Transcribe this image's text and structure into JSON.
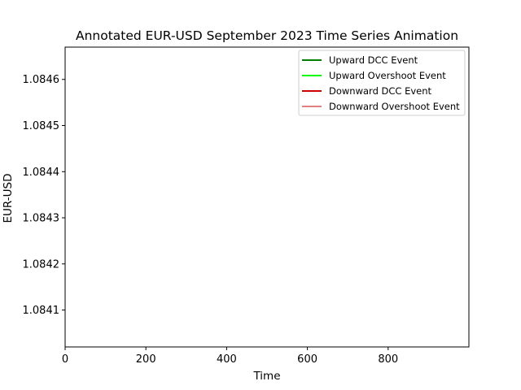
{
  "chart_data": {
    "type": "line",
    "title": "Annotated EUR-USD September 2023 Time Series Animation",
    "xlabel": "Time",
    "ylabel": "EUR-USD",
    "xlim": [
      0,
      1000
    ],
    "ylim": [
      1.08402,
      1.08467
    ],
    "xticks": [
      0,
      200,
      400,
      600,
      800
    ],
    "yticks": [
      1.0841,
      1.0842,
      1.0843,
      1.0844,
      1.0845,
      1.0846
    ],
    "xtick_labels": [
      "0",
      "200",
      "400",
      "600",
      "800"
    ],
    "ytick_labels": [
      "1.0841",
      "1.0842",
      "1.0843",
      "1.0844",
      "1.0845",
      "1.0846"
    ],
    "grid": false,
    "legend_position": "top-right",
    "series": [
      {
        "name": "Upward DCC Event",
        "color": "#008000",
        "x": [],
        "y": []
      },
      {
        "name": "Upward Overshoot Event",
        "color": "#00ff00",
        "x": [],
        "y": []
      },
      {
        "name": "Downward DCC Event",
        "color": "#cc0000",
        "x": [],
        "y": []
      },
      {
        "name": "Downward Overshoot Event",
        "color": "#e08080",
        "x": [],
        "y": []
      }
    ]
  }
}
